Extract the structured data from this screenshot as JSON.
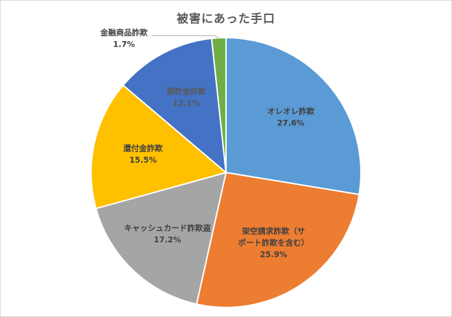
{
  "chart_data": {
    "type": "pie",
    "title": "被害にあった手口",
    "start_angle_deg": 0,
    "direction": "clockwise",
    "slices": [
      {
        "label_lines": [
          "オレオレ詐欺"
        ],
        "value": 27.6,
        "display": "27.6%",
        "color": "#5B9BD5",
        "text_color": "#404040"
      },
      {
        "label_lines": [
          "架空請求詐欺（サ",
          "ポート詐欺を含む）"
        ],
        "value": 25.9,
        "display": "25.9%",
        "color": "#ED7D31",
        "text_color": "#404040"
      },
      {
        "label_lines": [
          "キャッシュカード詐欺盗"
        ],
        "value": 17.2,
        "display": "17.2%",
        "color": "#A5A5A5",
        "text_color": "#404040"
      },
      {
        "label_lines": [
          "還付金詐欺"
        ],
        "value": 15.5,
        "display": "15.5%",
        "color": "#FFC000",
        "text_color": "#404040"
      },
      {
        "label_lines": [
          "預貯金詐欺"
        ],
        "value": 12.1,
        "display": "12.1%",
        "color": "#4472C4",
        "text_color": "#595959"
      },
      {
        "label_lines": [
          "金融商品詐欺"
        ],
        "value": 1.7,
        "display": "1.7%",
        "color": "#70AD47",
        "text_color": "#404040",
        "label_outside": true
      }
    ],
    "legend": "none"
  }
}
